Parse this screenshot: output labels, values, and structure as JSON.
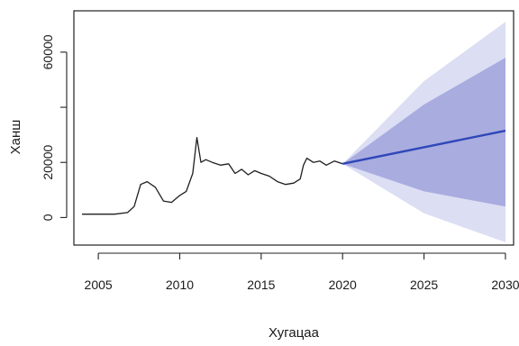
{
  "chart_data": {
    "type": "line",
    "title": "",
    "xlabel": "Хугацаа",
    "ylabel": "Ханш",
    "xlim": [
      2003.5,
      2030.5
    ],
    "ylim": [
      -10000,
      75000
    ],
    "x_ticks": [
      2005,
      2010,
      2015,
      2020,
      2025,
      2030
    ],
    "x_tick_labels": [
      "2005",
      "2010",
      "2015",
      "2020",
      "2025",
      "2030"
    ],
    "y_ticks": [
      0,
      20000,
      40000,
      60000
    ],
    "y_tick_labels": [
      "0",
      "20000",
      "",
      "60000"
    ],
    "grid": false,
    "legend": "none",
    "colors": {
      "history": "#1f1f1f",
      "forecast": "#2f47b8",
      "band_80": "#a9acdf",
      "band_95": "#dcdef3"
    },
    "history": {
      "x": [
        2004.0,
        2006.0,
        2006.8,
        2007.2,
        2007.6,
        2008.0,
        2008.5,
        2009.0,
        2009.5,
        2010.0,
        2010.4,
        2010.8,
        2011.05,
        2011.3,
        2011.6,
        2012.0,
        2012.5,
        2013.0,
        2013.4,
        2013.8,
        2014.2,
        2014.6,
        2015.0,
        2015.5,
        2016.0,
        2016.5,
        2017.0,
        2017.4,
        2017.6,
        2017.8,
        2018.2,
        2018.6,
        2019.0,
        2019.5,
        2020.0
      ],
      "y": [
        1200,
        1200,
        1800,
        4000,
        12000,
        13000,
        11000,
        6000,
        5500,
        8000,
        9500,
        16000,
        29000,
        20000,
        21000,
        20000,
        19000,
        19500,
        16000,
        17500,
        15500,
        17000,
        16000,
        15000,
        13000,
        12000,
        12500,
        14000,
        19000,
        21500,
        20000,
        20500,
        19000,
        20500,
        19500
      ]
    },
    "forecast": {
      "x": [
        2020,
        2025,
        2030
      ],
      "mean": [
        19500,
        25500,
        31500
      ],
      "lo80": [
        19500,
        9500,
        4000
      ],
      "hi80": [
        19500,
        41000,
        58000
      ],
      "lo95": [
        19500,
        1500,
        -9000
      ],
      "hi95": [
        19500,
        49500,
        71000
      ]
    }
  }
}
